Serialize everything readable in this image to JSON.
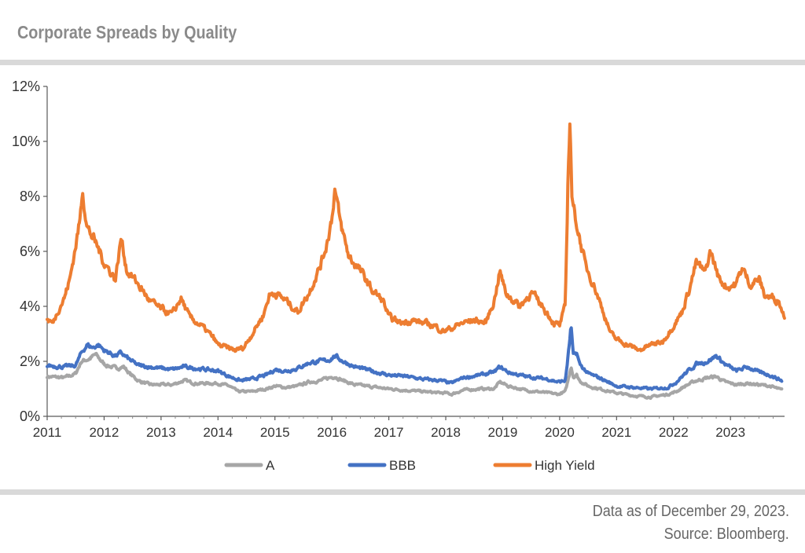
{
  "header": {
    "title": "Corporate Spreads by Quality"
  },
  "footer": {
    "asof": "Data as of December 29, 2023.",
    "source": "Source: Bloomberg."
  },
  "chart_data": {
    "type": "line",
    "title": "Corporate Spreads by Quality",
    "xlabel": "",
    "ylabel": "",
    "xlim": [
      2011.0,
      2023.95
    ],
    "ylim": [
      0,
      12
    ],
    "y_ticks": [
      0,
      2,
      4,
      6,
      8,
      10,
      12
    ],
    "y_tick_labels": [
      "0%",
      "2%",
      "4%",
      "6%",
      "8%",
      "10%",
      "12%"
    ],
    "x_ticks": [
      2011,
      2012,
      2013,
      2014,
      2015,
      2016,
      2017,
      2018,
      2019,
      2020,
      2021,
      2022,
      2023
    ],
    "x_tick_labels": [
      "2011",
      "2012",
      "2013",
      "2014",
      "2015",
      "2016",
      "2017",
      "2018",
      "2019",
      "2020",
      "2021",
      "2022",
      "2023"
    ],
    "grid": false,
    "legend_position": "bottom-center",
    "series": [
      {
        "name": "A",
        "color": "#a6a6a6",
        "points": [
          [
            2011.0,
            1.45
          ],
          [
            2011.3,
            1.4
          ],
          [
            2011.5,
            1.55
          ],
          [
            2011.6,
            2.0
          ],
          [
            2011.75,
            2.1
          ],
          [
            2011.85,
            2.25
          ],
          [
            2012.0,
            1.9
          ],
          [
            2012.2,
            1.75
          ],
          [
            2012.35,
            1.8
          ],
          [
            2012.45,
            1.55
          ],
          [
            2012.6,
            1.3
          ],
          [
            2012.8,
            1.15
          ],
          [
            2013.0,
            1.15
          ],
          [
            2013.2,
            1.15
          ],
          [
            2013.4,
            1.3
          ],
          [
            2013.6,
            1.2
          ],
          [
            2013.8,
            1.2
          ],
          [
            2014.0,
            1.2
          ],
          [
            2014.2,
            1.1
          ],
          [
            2014.35,
            0.9
          ],
          [
            2014.6,
            0.9
          ],
          [
            2014.85,
            1.0
          ],
          [
            2015.0,
            1.1
          ],
          [
            2015.2,
            1.05
          ],
          [
            2015.4,
            1.1
          ],
          [
            2015.6,
            1.25
          ],
          [
            2015.8,
            1.3
          ],
          [
            2015.95,
            1.4
          ],
          [
            2016.05,
            1.45
          ],
          [
            2016.2,
            1.3
          ],
          [
            2016.4,
            1.15
          ],
          [
            2016.6,
            1.1
          ],
          [
            2016.8,
            1.05
          ],
          [
            2017.0,
            1.0
          ],
          [
            2017.3,
            0.95
          ],
          [
            2017.6,
            0.9
          ],
          [
            2017.9,
            0.85
          ],
          [
            2018.0,
            0.85
          ],
          [
            2018.1,
            0.8
          ],
          [
            2018.3,
            0.95
          ],
          [
            2018.6,
            1.0
          ],
          [
            2018.85,
            1.0
          ],
          [
            2018.95,
            1.25
          ],
          [
            2019.1,
            1.1
          ],
          [
            2019.4,
            0.95
          ],
          [
            2019.8,
            0.85
          ],
          [
            2019.98,
            0.8
          ],
          [
            2020.1,
            0.9
          ],
          [
            2020.17,
            1.5
          ],
          [
            2020.2,
            1.85
          ],
          [
            2020.24,
            1.45
          ],
          [
            2020.3,
            1.5
          ],
          [
            2020.35,
            1.3
          ],
          [
            2020.5,
            1.1
          ],
          [
            2020.7,
            1.0
          ],
          [
            2021.0,
            0.85
          ],
          [
            2021.3,
            0.75
          ],
          [
            2021.6,
            0.7
          ],
          [
            2021.9,
            0.8
          ],
          [
            2022.05,
            0.9
          ],
          [
            2022.2,
            1.1
          ],
          [
            2022.4,
            1.3
          ],
          [
            2022.6,
            1.4
          ],
          [
            2022.75,
            1.45
          ],
          [
            2022.9,
            1.25
          ],
          [
            2023.1,
            1.15
          ],
          [
            2023.3,
            1.2
          ],
          [
            2023.5,
            1.15
          ],
          [
            2023.7,
            1.1
          ],
          [
            2023.9,
            0.95
          ]
        ]
      },
      {
        "name": "BBB",
        "color": "#4472c4",
        "points": [
          [
            2011.0,
            1.85
          ],
          [
            2011.3,
            1.8
          ],
          [
            2011.5,
            1.85
          ],
          [
            2011.6,
            2.3
          ],
          [
            2011.7,
            2.6
          ],
          [
            2011.8,
            2.5
          ],
          [
            2011.9,
            2.6
          ],
          [
            2012.0,
            2.4
          ],
          [
            2012.2,
            2.2
          ],
          [
            2012.3,
            2.3
          ],
          [
            2012.45,
            2.05
          ],
          [
            2012.6,
            1.85
          ],
          [
            2012.8,
            1.8
          ],
          [
            2013.0,
            1.75
          ],
          [
            2013.2,
            1.7
          ],
          [
            2013.4,
            1.8
          ],
          [
            2013.6,
            1.75
          ],
          [
            2013.8,
            1.7
          ],
          [
            2014.0,
            1.65
          ],
          [
            2014.2,
            1.45
          ],
          [
            2014.4,
            1.3
          ],
          [
            2014.6,
            1.35
          ],
          [
            2014.85,
            1.5
          ],
          [
            2015.0,
            1.7
          ],
          [
            2015.2,
            1.65
          ],
          [
            2015.4,
            1.75
          ],
          [
            2015.6,
            1.95
          ],
          [
            2015.8,
            2.0
          ],
          [
            2015.95,
            2.05
          ],
          [
            2016.05,
            2.2
          ],
          [
            2016.2,
            2.0
          ],
          [
            2016.4,
            1.8
          ],
          [
            2016.6,
            1.7
          ],
          [
            2016.8,
            1.6
          ],
          [
            2017.0,
            1.5
          ],
          [
            2017.3,
            1.45
          ],
          [
            2017.6,
            1.35
          ],
          [
            2017.9,
            1.3
          ],
          [
            2018.0,
            1.25
          ],
          [
            2018.1,
            1.2
          ],
          [
            2018.3,
            1.4
          ],
          [
            2018.6,
            1.5
          ],
          [
            2018.85,
            1.6
          ],
          [
            2018.95,
            1.8
          ],
          [
            2019.1,
            1.6
          ],
          [
            2019.4,
            1.45
          ],
          [
            2019.8,
            1.35
          ],
          [
            2019.98,
            1.25
          ],
          [
            2020.1,
            1.3
          ],
          [
            2020.17,
            2.6
          ],
          [
            2020.2,
            3.3
          ],
          [
            2020.24,
            2.2
          ],
          [
            2020.3,
            2.3
          ],
          [
            2020.35,
            1.9
          ],
          [
            2020.5,
            1.55
          ],
          [
            2020.7,
            1.4
          ],
          [
            2021.0,
            1.1
          ],
          [
            2021.3,
            1.05
          ],
          [
            2021.6,
            1.0
          ],
          [
            2021.9,
            1.05
          ],
          [
            2022.05,
            1.25
          ],
          [
            2022.2,
            1.55
          ],
          [
            2022.4,
            1.9
          ],
          [
            2022.6,
            2.0
          ],
          [
            2022.75,
            2.2
          ],
          [
            2022.9,
            1.9
          ],
          [
            2023.1,
            1.65
          ],
          [
            2023.3,
            1.8
          ],
          [
            2023.5,
            1.6
          ],
          [
            2023.7,
            1.5
          ],
          [
            2023.9,
            1.3
          ]
        ]
      },
      {
        "name": "High Yield",
        "color": "#ed7d31",
        "points": [
          [
            2011.0,
            3.5
          ],
          [
            2011.1,
            3.4
          ],
          [
            2011.2,
            3.9
          ],
          [
            2011.3,
            4.3
          ],
          [
            2011.4,
            5.0
          ],
          [
            2011.5,
            6.2
          ],
          [
            2011.58,
            7.2
          ],
          [
            2011.62,
            8.3
          ],
          [
            2011.7,
            6.9
          ],
          [
            2011.8,
            6.5
          ],
          [
            2011.9,
            6.1
          ],
          [
            2012.0,
            5.6
          ],
          [
            2012.1,
            5.3
          ],
          [
            2012.2,
            5.0
          ],
          [
            2012.3,
            6.5
          ],
          [
            2012.4,
            5.3
          ],
          [
            2012.6,
            4.8
          ],
          [
            2012.8,
            4.2
          ],
          [
            2013.0,
            3.9
          ],
          [
            2013.2,
            3.7
          ],
          [
            2013.35,
            4.3
          ],
          [
            2013.5,
            3.6
          ],
          [
            2013.7,
            3.3
          ],
          [
            2013.9,
            2.9
          ],
          [
            2014.0,
            2.6
          ],
          [
            2014.3,
            2.4
          ],
          [
            2014.45,
            2.5
          ],
          [
            2014.6,
            3.0
          ],
          [
            2014.8,
            3.7
          ],
          [
            2014.9,
            4.4
          ],
          [
            2015.0,
            4.5
          ],
          [
            2015.2,
            4.2
          ],
          [
            2015.4,
            3.8
          ],
          [
            2015.6,
            4.5
          ],
          [
            2015.8,
            5.5
          ],
          [
            2015.9,
            6.2
          ],
          [
            2016.0,
            7.2
          ],
          [
            2016.05,
            8.3
          ],
          [
            2016.15,
            7.0
          ],
          [
            2016.3,
            5.8
          ],
          [
            2016.5,
            5.3
          ],
          [
            2016.7,
            4.6
          ],
          [
            2016.9,
            4.2
          ],
          [
            2017.0,
            3.6
          ],
          [
            2017.2,
            3.4
          ],
          [
            2017.4,
            3.5
          ],
          [
            2017.6,
            3.4
          ],
          [
            2017.8,
            3.3
          ],
          [
            2017.95,
            3.1
          ],
          [
            2018.1,
            3.2
          ],
          [
            2018.3,
            3.4
          ],
          [
            2018.5,
            3.5
          ],
          [
            2018.7,
            3.4
          ],
          [
            2018.85,
            4.2
          ],
          [
            2018.95,
            5.3
          ],
          [
            2019.05,
            4.5
          ],
          [
            2019.3,
            4.0
          ],
          [
            2019.5,
            4.5
          ],
          [
            2019.7,
            4.0
          ],
          [
            2019.9,
            3.4
          ],
          [
            2020.0,
            3.3
          ],
          [
            2020.1,
            4.0
          ],
          [
            2020.15,
            9.0
          ],
          [
            2020.18,
            10.8
          ],
          [
            2020.22,
            7.8
          ],
          [
            2020.3,
            7.0
          ],
          [
            2020.45,
            5.5
          ],
          [
            2020.6,
            4.8
          ],
          [
            2020.8,
            3.6
          ],
          [
            2020.9,
            3.0
          ],
          [
            2021.0,
            2.8
          ],
          [
            2021.2,
            2.6
          ],
          [
            2021.4,
            2.4
          ],
          [
            2021.6,
            2.6
          ],
          [
            2021.8,
            2.7
          ],
          [
            2022.0,
            3.3
          ],
          [
            2022.15,
            3.8
          ],
          [
            2022.3,
            4.8
          ],
          [
            2022.4,
            5.6
          ],
          [
            2022.55,
            5.2
          ],
          [
            2022.65,
            6.0
          ],
          [
            2022.8,
            5.0
          ],
          [
            2022.95,
            4.7
          ],
          [
            2023.1,
            4.8
          ],
          [
            2023.2,
            5.4
          ],
          [
            2023.35,
            4.8
          ],
          [
            2023.5,
            5.0
          ],
          [
            2023.6,
            4.4
          ],
          [
            2023.75,
            4.3
          ],
          [
            2023.85,
            4.2
          ],
          [
            2023.95,
            3.6
          ]
        ]
      }
    ]
  }
}
